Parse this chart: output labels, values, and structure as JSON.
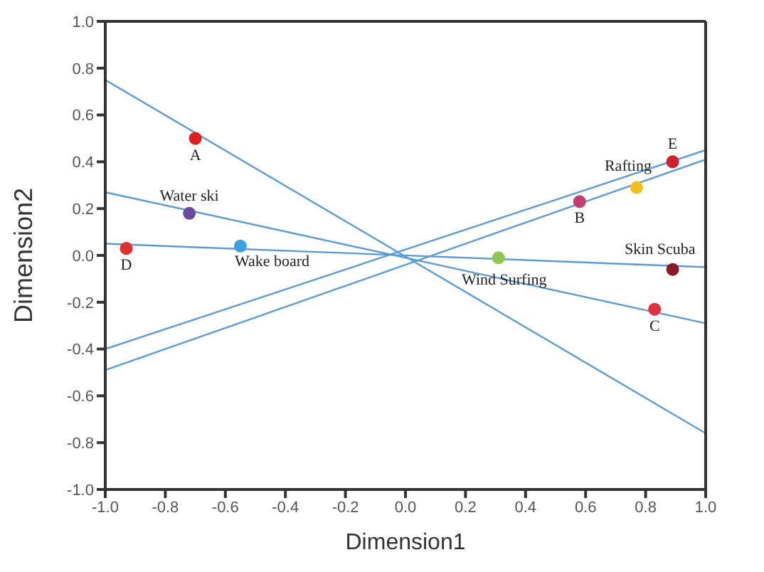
{
  "chart_data": {
    "type": "scatter",
    "xlabel": "Dimension1",
    "ylabel": "Dimension2",
    "xlim": [
      -1,
      1
    ],
    "ylim": [
      -1,
      1
    ],
    "xticks": [
      {
        "value": -1,
        "label": "-1.0"
      },
      {
        "value": -0.8,
        "label": "-0.8"
      },
      {
        "value": -0.6,
        "label": "-0.6"
      },
      {
        "value": -0.4,
        "label": "-0.4"
      },
      {
        "value": -0.2,
        "label": "-0.2"
      },
      {
        "value": 0,
        "label": "0.0"
      },
      {
        "value": 0.2,
        "label": "0.2"
      },
      {
        "value": 0.4,
        "label": "0.4"
      },
      {
        "value": 0.6,
        "label": "0.6"
      },
      {
        "value": 0.8,
        "label": "0.8"
      },
      {
        "value": 1,
        "label": "1.0"
      }
    ],
    "yticks": [
      {
        "value": -1,
        "label": "-1.0"
      },
      {
        "value": -0.8,
        "label": "-0.8"
      },
      {
        "value": -0.6,
        "label": "-0.6"
      },
      {
        "value": -0.4,
        "label": "-0.4"
      },
      {
        "value": -0.2,
        "label": "-0.2"
      },
      {
        "value": 0,
        "label": "0.0"
      },
      {
        "value": 0.2,
        "label": "0.2"
      },
      {
        "value": 0.4,
        "label": "0.4"
      },
      {
        "value": 0.6,
        "label": "0.6"
      },
      {
        "value": 0.8,
        "label": "0.8"
      },
      {
        "value": 1,
        "label": "1.0"
      }
    ],
    "grid": false,
    "legend": false,
    "series": [
      {
        "marker": "circle",
        "x": [
          -0.7,
          -0.72,
          -0.93,
          -0.55,
          0.31,
          0.58,
          0.77,
          0.89,
          0.89,
          0.83
        ],
        "values": [
          0.5,
          0.18,
          0.03,
          0.04,
          -0.01,
          0.23,
          0.29,
          0.4,
          -0.06,
          -0.23
        ],
        "colors": [
          "#e02020",
          "#6a4a9a",
          "#e03030",
          "#3aa0e0",
          "#8cc850",
          "#c04070",
          "#f0c020",
          "#d02030",
          "#8a1a2a",
          "#e03040"
        ]
      },
      {
        "type": "line",
        "color": "#5b9bd5",
        "x": [
          -1,
          1
        ],
        "values": [
          0.75,
          -0.76
        ]
      },
      {
        "type": "line",
        "color": "#5b9bd5",
        "x": [
          -1,
          1
        ],
        "values": [
          0.27,
          -0.29
        ]
      },
      {
        "type": "line",
        "color": "#5b9bd5",
        "x": [
          -1,
          1
        ],
        "values": [
          0.05,
          -0.05
        ]
      },
      {
        "type": "line",
        "color": "#5b9bd5",
        "x": [
          -1,
          1
        ],
        "values": [
          -0.4,
          0.45
        ]
      },
      {
        "type": "line",
        "color": "#5b9bd5",
        "x": [
          -1,
          1
        ],
        "values": [
          -0.49,
          0.41
        ]
      }
    ],
    "annotations": [
      {
        "text": "A",
        "x": -0.7,
        "y": 0.5
      },
      {
        "text": "Water ski",
        "x": -0.72,
        "y": 0.18
      },
      {
        "text": "D",
        "x": -0.93,
        "y": 0.03
      },
      {
        "text": "Wake board",
        "x": -0.55,
        "y": 0.04
      },
      {
        "text": "Wind Surfing",
        "x": 0.31,
        "y": -0.01
      },
      {
        "text": "B",
        "x": 0.58,
        "y": 0.23
      },
      {
        "text": "Rafting",
        "x": 0.77,
        "y": 0.29
      },
      {
        "text": "E",
        "x": 0.89,
        "y": 0.4
      },
      {
        "text": "Skin Scuba",
        "x": 0.89,
        "y": -0.06
      },
      {
        "text": "C",
        "x": 0.83,
        "y": -0.23
      }
    ]
  }
}
